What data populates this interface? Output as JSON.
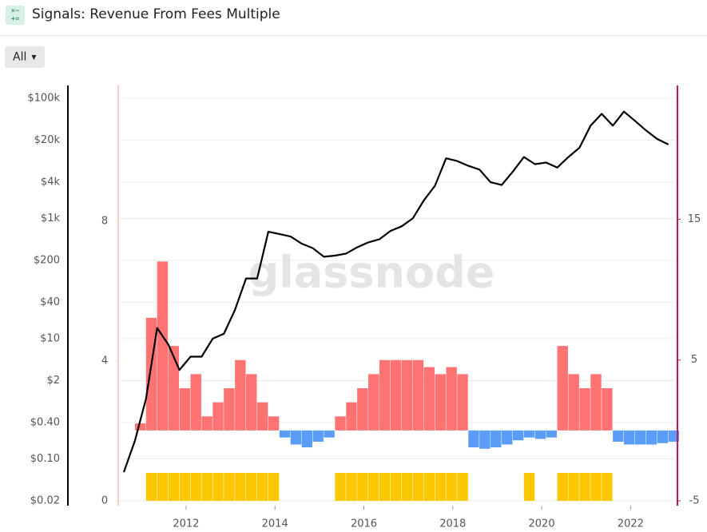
{
  "header": {
    "title": "Signals: Revenue From Fees Multiple"
  },
  "controls": {
    "range_button": "All"
  },
  "chart_data": {
    "type": "combo",
    "watermark": "glassnode",
    "x": [
      2010.6,
      2010.85,
      2011.1,
      2011.35,
      2011.6,
      2011.85,
      2012.1,
      2012.35,
      2012.6,
      2012.85,
      2013.1,
      2013.35,
      2013.6,
      2013.85,
      2014.1,
      2014.35,
      2014.6,
      2014.85,
      2015.1,
      2015.35,
      2015.6,
      2015.85,
      2016.1,
      2016.35,
      2016.6,
      2016.85,
      2017.1,
      2017.35,
      2017.6,
      2017.85,
      2018.1,
      2018.35,
      2018.6,
      2018.85,
      2019.1,
      2019.35,
      2019.6,
      2019.85,
      2020.1,
      2020.35,
      2020.6,
      2020.85,
      2021.1,
      2021.35,
      2021.6,
      2021.85,
      2022.1,
      2022.35,
      2022.6,
      2022.85
    ],
    "xlim": [
      2010.51,
      2023.0
    ],
    "xticks": [
      2012,
      2014,
      2016,
      2018,
      2020,
      2022
    ],
    "ylog": true,
    "ylim": [
      0.0166,
      163000
    ],
    "yticks": [
      {
        "value": 0.02,
        "label": "$0.02"
      },
      {
        "value": 0.1,
        "label": "$0.10"
      },
      {
        "value": 0.4,
        "label": "$0.40"
      },
      {
        "value": 2,
        "label": "$2"
      },
      {
        "value": 10,
        "label": "$10"
      },
      {
        "value": 40,
        "label": "$40"
      },
      {
        "value": 200,
        "label": "$200"
      },
      {
        "value": 1000,
        "label": "$1k"
      },
      {
        "value": 4000,
        "label": "$4k"
      },
      {
        "value": 20000,
        "label": "$20k"
      },
      {
        "value": 100000,
        "label": "$100k"
      }
    ],
    "y3lim": [
      -0.137,
      11.89
    ],
    "y3ticks": [
      0,
      4,
      8
    ],
    "y2lim": [
      -5.34,
      24.5
    ],
    "y2ticks": [
      -5,
      5,
      15
    ],
    "grid": true,
    "series": [
      {
        "kind": "bar",
        "axis": "y3",
        "color": "#fcc600",
        "values": [
          0,
          0,
          0.8,
          0.8,
          0.8,
          0.8,
          0.8,
          0.8,
          0.8,
          0.8,
          0.8,
          0.8,
          0.8,
          0.8,
          0,
          0,
          0,
          0,
          0,
          0.8,
          0.8,
          0.8,
          0.8,
          0.8,
          0.8,
          0.8,
          0.8,
          0.8,
          0.8,
          0.8,
          0.8,
          0,
          0,
          0,
          0,
          0,
          0.8,
          0,
          0,
          0.8,
          0.8,
          0.8,
          0.8,
          0.8,
          0,
          0,
          0,
          0,
          0,
          0
        ]
      },
      {
        "kind": "bar",
        "axis": "y2",
        "color": "#ff7373",
        "negative_color": "#5b9cf6",
        "values": [
          0,
          0.5,
          8,
          12,
          6,
          3,
          4,
          1,
          2,
          3,
          5,
          4,
          2,
          1,
          -0.5,
          -1,
          -1.2,
          -0.8,
          -0.5,
          1,
          2,
          3,
          4,
          5,
          5,
          5,
          5,
          4.5,
          4,
          4.5,
          4,
          -1.2,
          -1.3,
          -1.2,
          -1,
          -0.7,
          -0.5,
          -0.6,
          -0.5,
          6,
          4,
          3,
          4,
          3,
          -0.8,
          -1,
          -1,
          -1,
          -0.9,
          -0.8
        ]
      },
      {
        "kind": "line",
        "axis": "y",
        "color": "#000000",
        "values": [
          0.06,
          0.2,
          1,
          15,
          8,
          3,
          5,
          5,
          10,
          12,
          30,
          100,
          100,
          600,
          550,
          500,
          380,
          320,
          230,
          240,
          260,
          330,
          400,
          450,
          620,
          740,
          1000,
          2000,
          3500,
          10000,
          9000,
          7500,
          6500,
          4000,
          3600,
          6000,
          10500,
          8000,
          8500,
          7000,
          10500,
          15000,
          35000,
          55000,
          35000,
          60000,
          42000,
          29000,
          21000,
          17000
        ]
      }
    ]
  }
}
